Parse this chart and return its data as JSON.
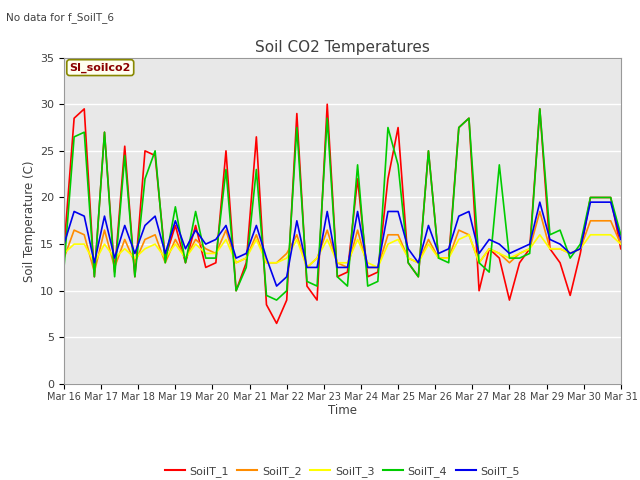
{
  "title": "Soil CO2 Temperatures",
  "ylabel": "Soil Temperature (C)",
  "xlabel": "Time",
  "note": "No data for f_SoilT_6",
  "site_label": "SI_soilco2",
  "ylim": [
    0,
    35
  ],
  "yticks": [
    0,
    5,
    10,
    15,
    20,
    25,
    30,
    35
  ],
  "xtick_labels": [
    "Mar 16",
    "Mar 17",
    "Mar 18",
    "Mar 19",
    "Mar 20",
    "Mar 21",
    "Mar 22",
    "Mar 23",
    "Mar 24",
    "Mar 25",
    "Mar 26",
    "Mar 27",
    "Mar 28",
    "Mar 29",
    "Mar 30",
    "Mar 31"
  ],
  "legend_labels": [
    "SoilT_1",
    "SoilT_2",
    "SoilT_3",
    "SoilT_4",
    "SoilT_5"
  ],
  "colors": {
    "SoilT_1": "#ff0000",
    "SoilT_2": "#ff8c00",
    "SoilT_3": "#ffff00",
    "SoilT_4": "#00cc00",
    "SoilT_5": "#0000ee"
  },
  "bg_color": "#e8e8e8",
  "title_color": "#404040",
  "text_color": "#404040",
  "grid_color": "#ffffff",
  "SoilT_1": [
    14.5,
    28.5,
    29.5,
    11.5,
    27.0,
    12.0,
    25.5,
    11.5,
    25.0,
    24.5,
    13.5,
    17.0,
    13.0,
    17.0,
    12.5,
    13.0,
    25.0,
    10.0,
    13.0,
    26.5,
    8.5,
    6.5,
    9.0,
    29.0,
    10.5,
    9.0,
    30.0,
    11.5,
    12.0,
    22.0,
    11.5,
    12.0,
    22.0,
    27.5,
    13.0,
    11.5,
    25.0,
    13.5,
    13.5,
    27.5,
    28.5,
    10.0,
    14.5,
    13.5,
    9.0,
    13.0,
    14.5,
    29.5,
    14.5,
    13.0,
    9.5,
    14.0,
    20.0,
    20.0,
    20.0,
    14.5
  ],
  "SoilT_2": [
    13.5,
    16.5,
    16.0,
    12.0,
    16.5,
    12.5,
    15.5,
    13.0,
    15.5,
    16.0,
    13.0,
    15.5,
    13.5,
    15.5,
    14.5,
    14.0,
    16.5,
    13.0,
    13.5,
    16.0,
    13.0,
    13.0,
    14.0,
    16.0,
    12.5,
    13.5,
    16.5,
    13.0,
    12.5,
    16.5,
    12.5,
    12.5,
    16.0,
    16.0,
    13.5,
    13.0,
    15.5,
    13.5,
    13.5,
    16.5,
    16.0,
    13.0,
    14.5,
    14.0,
    13.0,
    14.0,
    14.5,
    18.5,
    14.5,
    14.5,
    14.0,
    14.5,
    17.5,
    17.5,
    17.5,
    15.0
  ],
  "SoilT_3": [
    14.0,
    15.0,
    15.0,
    13.0,
    15.0,
    13.5,
    14.5,
    13.5,
    14.5,
    15.0,
    13.5,
    15.0,
    13.5,
    15.0,
    14.0,
    14.0,
    15.5,
    13.0,
    13.5,
    15.5,
    13.0,
    13.0,
    13.5,
    15.5,
    12.5,
    13.5,
    15.5,
    13.0,
    13.0,
    15.5,
    13.0,
    12.5,
    15.0,
    15.5,
    13.5,
    13.0,
    15.0,
    13.5,
    13.5,
    15.5,
    16.0,
    13.0,
    14.5,
    14.0,
    13.5,
    14.0,
    14.5,
    16.0,
    14.5,
    14.5,
    14.0,
    14.5,
    16.0,
    16.0,
    16.0,
    15.0
  ],
  "SoilT_4": [
    12.5,
    26.5,
    27.0,
    11.5,
    27.0,
    11.5,
    24.5,
    11.5,
    22.0,
    25.0,
    13.0,
    19.0,
    13.0,
    18.5,
    13.5,
    13.5,
    23.0,
    10.0,
    12.5,
    23.0,
    9.5,
    9.0,
    10.0,
    27.5,
    11.0,
    10.5,
    28.5,
    11.5,
    10.5,
    23.5,
    10.5,
    11.0,
    27.5,
    23.5,
    13.0,
    11.5,
    25.0,
    13.5,
    13.0,
    27.5,
    28.5,
    13.0,
    12.0,
    23.5,
    13.5,
    13.5,
    14.0,
    29.5,
    16.0,
    16.5,
    13.5,
    15.0,
    20.0,
    20.0,
    20.0,
    16.0
  ],
  "SoilT_5": [
    15.0,
    18.5,
    18.0,
    13.0,
    18.0,
    13.5,
    17.0,
    14.0,
    17.0,
    18.0,
    14.0,
    17.5,
    14.5,
    16.5,
    15.0,
    15.5,
    17.0,
    13.5,
    14.0,
    17.0,
    13.5,
    10.5,
    11.5,
    17.5,
    12.5,
    12.5,
    18.5,
    12.5,
    12.5,
    18.5,
    12.5,
    12.5,
    18.5,
    18.5,
    14.5,
    13.0,
    17.0,
    14.0,
    14.5,
    18.0,
    18.5,
    14.0,
    15.5,
    15.0,
    14.0,
    14.5,
    15.0,
    19.5,
    15.5,
    15.0,
    14.0,
    14.5,
    19.5,
    19.5,
    19.5,
    15.5
  ]
}
